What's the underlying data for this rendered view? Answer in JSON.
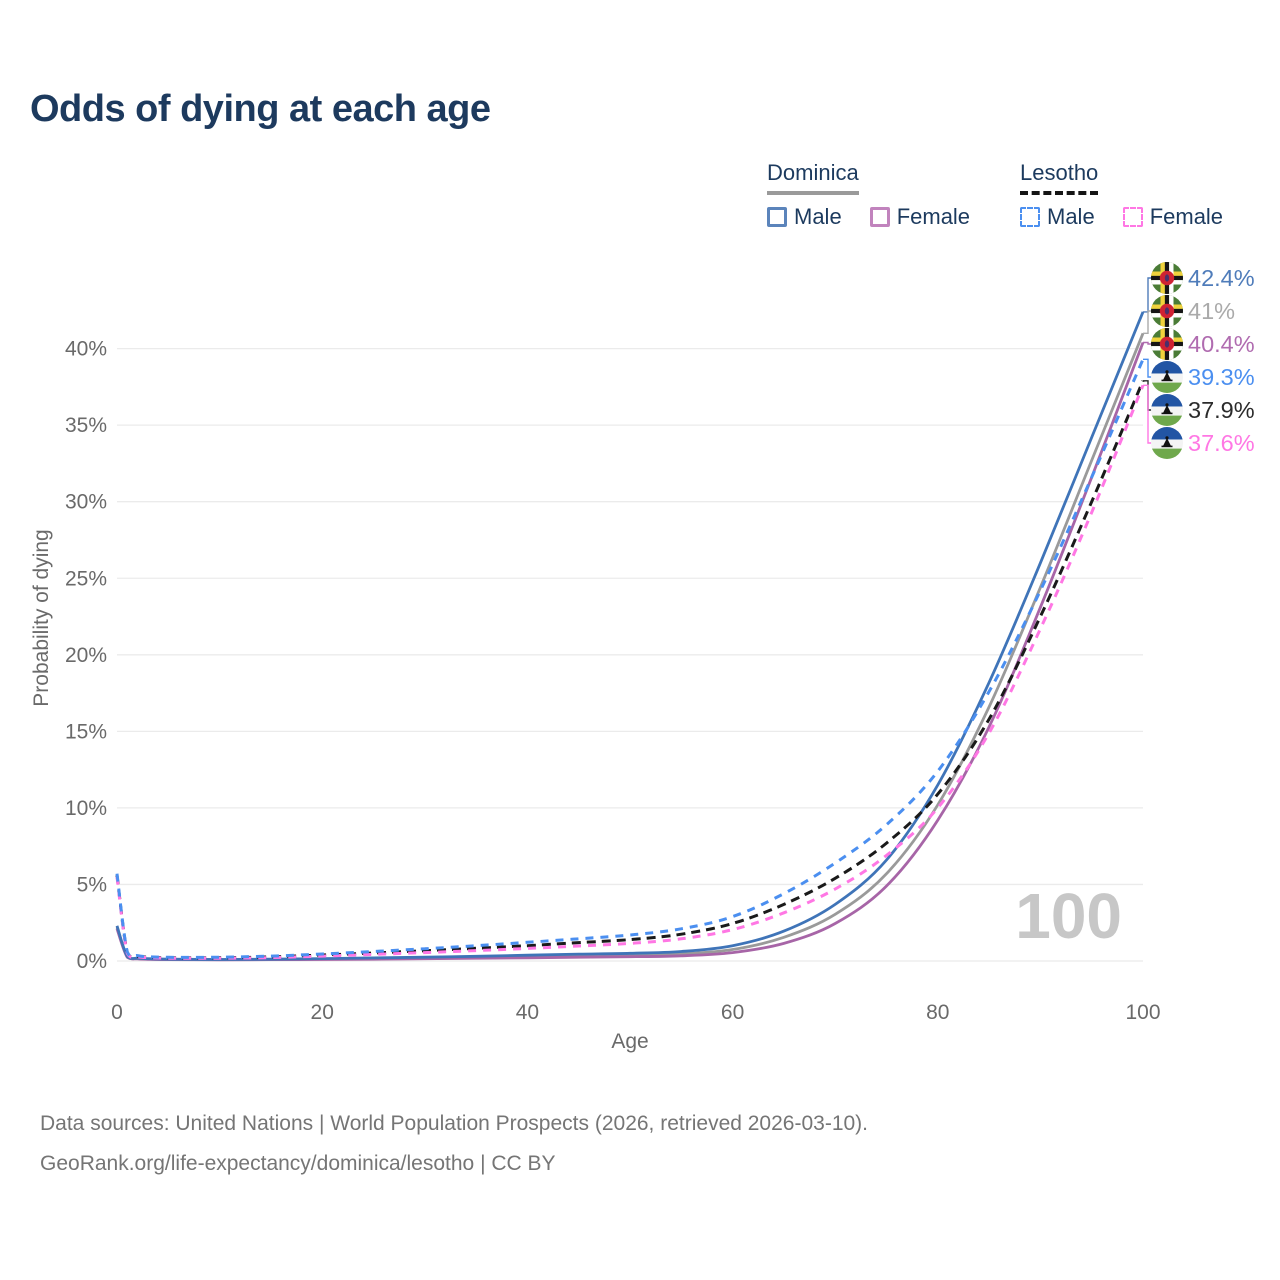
{
  "title": "Odds of dying at each age",
  "watermark": "100",
  "legend": {
    "groups": [
      {
        "country": "Dominica",
        "line_style": "solid",
        "underline_color": "#9a9a9a",
        "items": [
          {
            "label": "Male",
            "color": "#5b84bb"
          },
          {
            "label": "Female",
            "color": "#c183bd"
          }
        ]
      },
      {
        "country": "Lesotho",
        "line_style": "dashed",
        "underline_color": "#151515",
        "items": [
          {
            "label": "Male",
            "color": "#4b8ff0"
          },
          {
            "label": "Female",
            "color": "#ff77e4"
          }
        ]
      }
    ]
  },
  "footer": {
    "line1": "Data sources: United Nations | World Population Prospects (2026, retrieved 2026-03-10).",
    "line2": "GeoRank.org/life-expectancy/dominica/lesotho | CC BY"
  },
  "icons": {
    "dominica": {
      "bg": "#4a7c36",
      "stripe_yellow": "#f0d23c",
      "stripe_black": "#151515",
      "stripe_white": "#ffffff",
      "disc": "#cf2233",
      "parrot": "#4a2f6b"
    },
    "lesotho": {
      "top": "#2255a4",
      "mid": "#f4f4f4",
      "bottom": "#6fa84c",
      "hat": "#111111"
    }
  },
  "chart_data": {
    "type": "line",
    "title": "Odds of dying at each age",
    "xlabel": "Age",
    "ylabel": "Probability of dying",
    "xlim": [
      0,
      100
    ],
    "ylim": [
      0,
      44
    ],
    "grid": "horizontal",
    "x_ticks": [
      0,
      20,
      40,
      60,
      80,
      100
    ],
    "y_ticks": [
      0,
      5,
      10,
      15,
      20,
      25,
      30,
      35,
      40
    ],
    "y_tick_labels": [
      "0%",
      "5%",
      "10%",
      "15%",
      "20%",
      "25%",
      "30%",
      "35%",
      "40%"
    ],
    "x": [
      0,
      1,
      2,
      3,
      5,
      10,
      15,
      20,
      25,
      30,
      35,
      40,
      45,
      50,
      55,
      60,
      65,
      70,
      75,
      80,
      85,
      90,
      95,
      100
    ],
    "series": [
      {
        "name": "Dominica Male",
        "country": "dominica",
        "sex": "male",
        "color": "#3f74b8",
        "label_color": "#4f7cba",
        "dash": false,
        "end_label": "42.4%",
        "end_value": 42.4,
        "values": [
          2.3,
          0.3,
          0.18,
          0.15,
          0.12,
          0.1,
          0.12,
          0.16,
          0.2,
          0.25,
          0.31,
          0.38,
          0.45,
          0.5,
          0.62,
          1.0,
          1.95,
          3.7,
          6.6,
          11.5,
          18.2,
          26.0,
          34.2,
          42.4
        ]
      },
      {
        "name": "Dominica",
        "country": "dominica",
        "sex": "all",
        "color": "#9a9a9a",
        "label_color": "#aaaaaa",
        "dash": false,
        "end_label": "41%",
        "end_value": 41.0,
        "values": [
          2.2,
          0.27,
          0.16,
          0.13,
          0.1,
          0.09,
          0.1,
          0.13,
          0.16,
          0.2,
          0.24,
          0.29,
          0.34,
          0.38,
          0.47,
          0.75,
          1.55,
          3.05,
          5.7,
          10.2,
          16.6,
          24.4,
          32.7,
          41.0
        ]
      },
      {
        "name": "Dominica Female",
        "country": "dominica",
        "sex": "female",
        "color": "#a765a7",
        "label_color": "#b06cb0",
        "dash": false,
        "end_label": "40.4%",
        "end_value": 40.4,
        "values": [
          2.1,
          0.24,
          0.14,
          0.11,
          0.09,
          0.08,
          0.09,
          0.1,
          0.12,
          0.15,
          0.18,
          0.21,
          0.25,
          0.28,
          0.34,
          0.55,
          1.15,
          2.45,
          4.9,
          9.2,
          15.3,
          23.1,
          31.6,
          40.4
        ]
      },
      {
        "name": "Lesotho Male",
        "country": "lesotho",
        "sex": "male",
        "color": "#4b8ff0",
        "label_color": "#4b8ff0",
        "dash": true,
        "end_label": "39.3%",
        "end_value": 39.3,
        "values": [
          5.7,
          0.6,
          0.35,
          0.28,
          0.24,
          0.25,
          0.32,
          0.46,
          0.62,
          0.8,
          1.0,
          1.22,
          1.45,
          1.7,
          2.1,
          2.9,
          4.4,
          6.4,
          8.9,
          12.4,
          17.6,
          24.2,
          31.6,
          39.3
        ]
      },
      {
        "name": "Lesotho",
        "country": "lesotho",
        "sex": "all",
        "color": "#1a1a1a",
        "label_color": "#2b2b2b",
        "dash": true,
        "end_label": "37.9%",
        "end_value": 37.9,
        "values": [
          5.6,
          0.55,
          0.31,
          0.25,
          0.21,
          0.21,
          0.27,
          0.39,
          0.52,
          0.67,
          0.83,
          1.0,
          1.2,
          1.4,
          1.75,
          2.45,
          3.7,
          5.4,
          7.7,
          10.9,
          15.8,
          22.5,
          30.0,
          37.9
        ]
      },
      {
        "name": "Lesotho Female",
        "country": "lesotho",
        "sex": "female",
        "color": "#ff77e4",
        "label_color": "#ff77e4",
        "dash": true,
        "end_label": "37.6%",
        "end_value": 37.6,
        "values": [
          5.5,
          0.5,
          0.28,
          0.22,
          0.18,
          0.18,
          0.22,
          0.32,
          0.43,
          0.55,
          0.68,
          0.82,
          0.98,
          1.15,
          1.45,
          2.05,
          3.15,
          4.7,
          6.9,
          10.0,
          14.9,
          21.7,
          29.3,
          37.6
        ]
      }
    ]
  }
}
